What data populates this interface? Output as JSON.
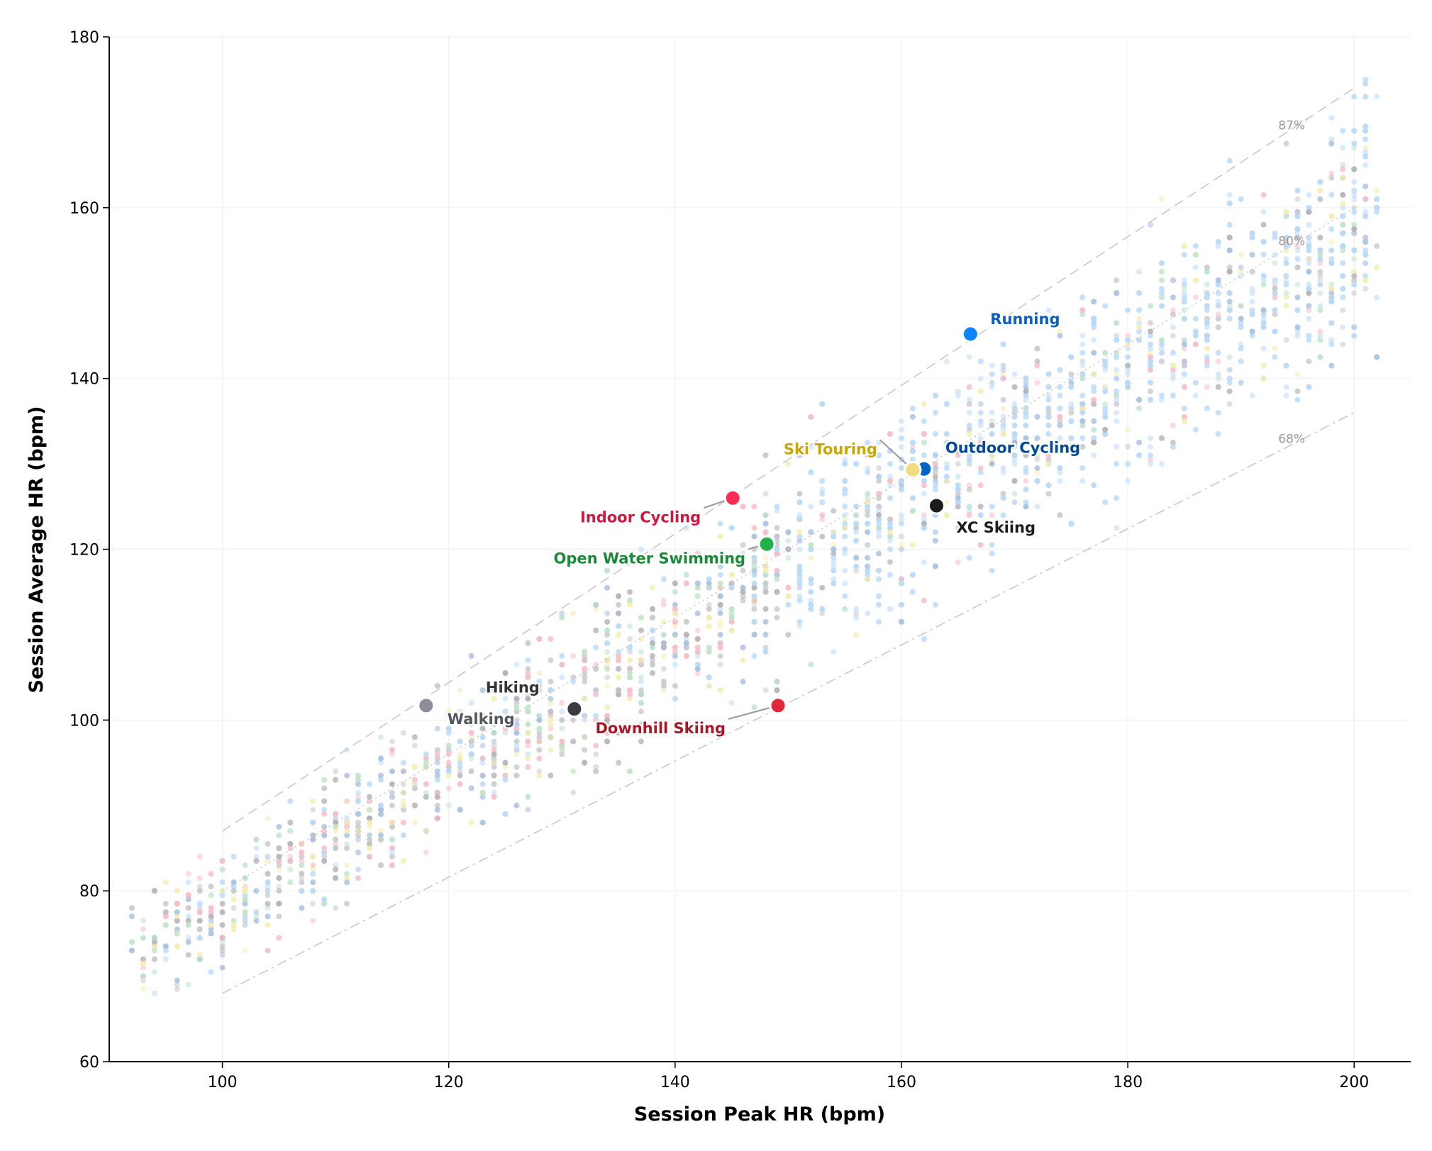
{
  "chart_data": {
    "type": "scatter",
    "xlabel": "Session Peak HR (bpm)",
    "ylabel": "Session Average HR (bpm)",
    "xlim": [
      90,
      205
    ],
    "ylim": [
      60,
      180
    ],
    "xticks": [
      100,
      120,
      140,
      160,
      180,
      200
    ],
    "yticks": [
      60,
      80,
      100,
      120,
      140,
      160,
      180
    ],
    "grid": true,
    "reference_lines": [
      {
        "label": "87%",
        "ratio": 0.87,
        "x": [
          100,
          200
        ],
        "style": "dashed"
      },
      {
        "label": "80%",
        "ratio": 0.8,
        "x": [
          100,
          200
        ],
        "style": "dotted"
      },
      {
        "label": "68%",
        "ratio": 0.68,
        "x": [
          100,
          200
        ],
        "style": "dashdot"
      }
    ],
    "series": [
      {
        "name": "Running",
        "x": 166.1,
        "y": 145.2,
        "color": "#0a84ff",
        "label_color": "#0a5fc0"
      },
      {
        "name": "Outdoor Cycling",
        "x": 162.0,
        "y": 129.4,
        "color": "#0064c8",
        "label_color": "#004a99"
      },
      {
        "name": "Ski Touring",
        "x": 161.0,
        "y": 129.3,
        "color": "#f2dc80",
        "label_color": "#c8a800"
      },
      {
        "name": "XC Skiing",
        "x": 163.1,
        "y": 125.1,
        "color": "#1c1c1e",
        "label_color": "#1c1c1e"
      },
      {
        "name": "Indoor Cycling",
        "x": 145.1,
        "y": 126.0,
        "color": "#ff2d55",
        "label_color": "#d0183e"
      },
      {
        "name": "Open Water Swimming",
        "x": 148.1,
        "y": 120.6,
        "color": "#22b24c",
        "label_color": "#1a8a38"
      },
      {
        "name": "Hiking",
        "x": 131.1,
        "y": 101.3,
        "color": "#3a3a40",
        "label_color": "#333338"
      },
      {
        "name": "Walking",
        "x": 118.0,
        "y": 101.7,
        "color": "#8e8e9a",
        "label_color": "#55555f"
      },
      {
        "name": "Downhill Skiing",
        "x": 149.1,
        "y": 101.7,
        "color": "#e0283a",
        "label_color": "#a81828"
      }
    ]
  }
}
